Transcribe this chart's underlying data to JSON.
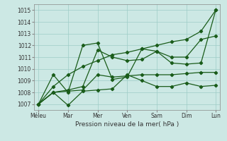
{
  "background_color": "#cce8e4",
  "grid_color": "#9eccc6",
  "line_color": "#1a5c1a",
  "xlabel": "Pression niveau de la mer( hPa )",
  "x_ticks": [
    "Méleu",
    "Mar",
    "Mer",
    "Ven",
    "Sam",
    "Dim",
    "Lun"
  ],
  "x_tick_positions": [
    0,
    2,
    4,
    6,
    8,
    10,
    12
  ],
  "ylim": [
    1006.5,
    1015.5
  ],
  "yticks": [
    1007,
    1008,
    1009,
    1010,
    1011,
    1012,
    1013,
    1014,
    1015
  ],
  "x_all": [
    0,
    1,
    2,
    3,
    4,
    5,
    6,
    7,
    8,
    9,
    10,
    11,
    12
  ],
  "series": [
    [
      1007.0,
      1009.5,
      1008.0,
      1012.0,
      1012.2,
      1009.1,
      1009.3,
      1011.7,
      1011.5,
      1010.5,
      1010.4,
      1010.5,
      1015.0
    ],
    [
      1007.0,
      1008.0,
      1006.9,
      1008.1,
      1008.2,
      1008.3,
      1009.5,
      1009.0,
      1008.5,
      1008.5,
      1008.8,
      1008.5,
      1008.6
    ],
    [
      1007.0,
      1008.0,
      1008.1,
      1008.2,
      1009.5,
      1009.3,
      1009.4,
      1009.5,
      1009.5,
      1009.5,
      1009.6,
      1009.7,
      1009.7
    ],
    [
      1007.0,
      1008.0,
      1008.2,
      1008.5,
      1011.6,
      1011.0,
      1010.7,
      1010.8,
      1011.5,
      1011.0,
      1011.0,
      1012.5,
      1012.8
    ],
    [
      1007.0,
      1008.5,
      1009.5,
      1010.2,
      1010.7,
      1011.2,
      1011.4,
      1011.7,
      1012.0,
      1012.3,
      1012.5,
      1013.2,
      1015.0
    ]
  ],
  "tick_fontsize": 5.5,
  "xlabel_fontsize": 6.5
}
